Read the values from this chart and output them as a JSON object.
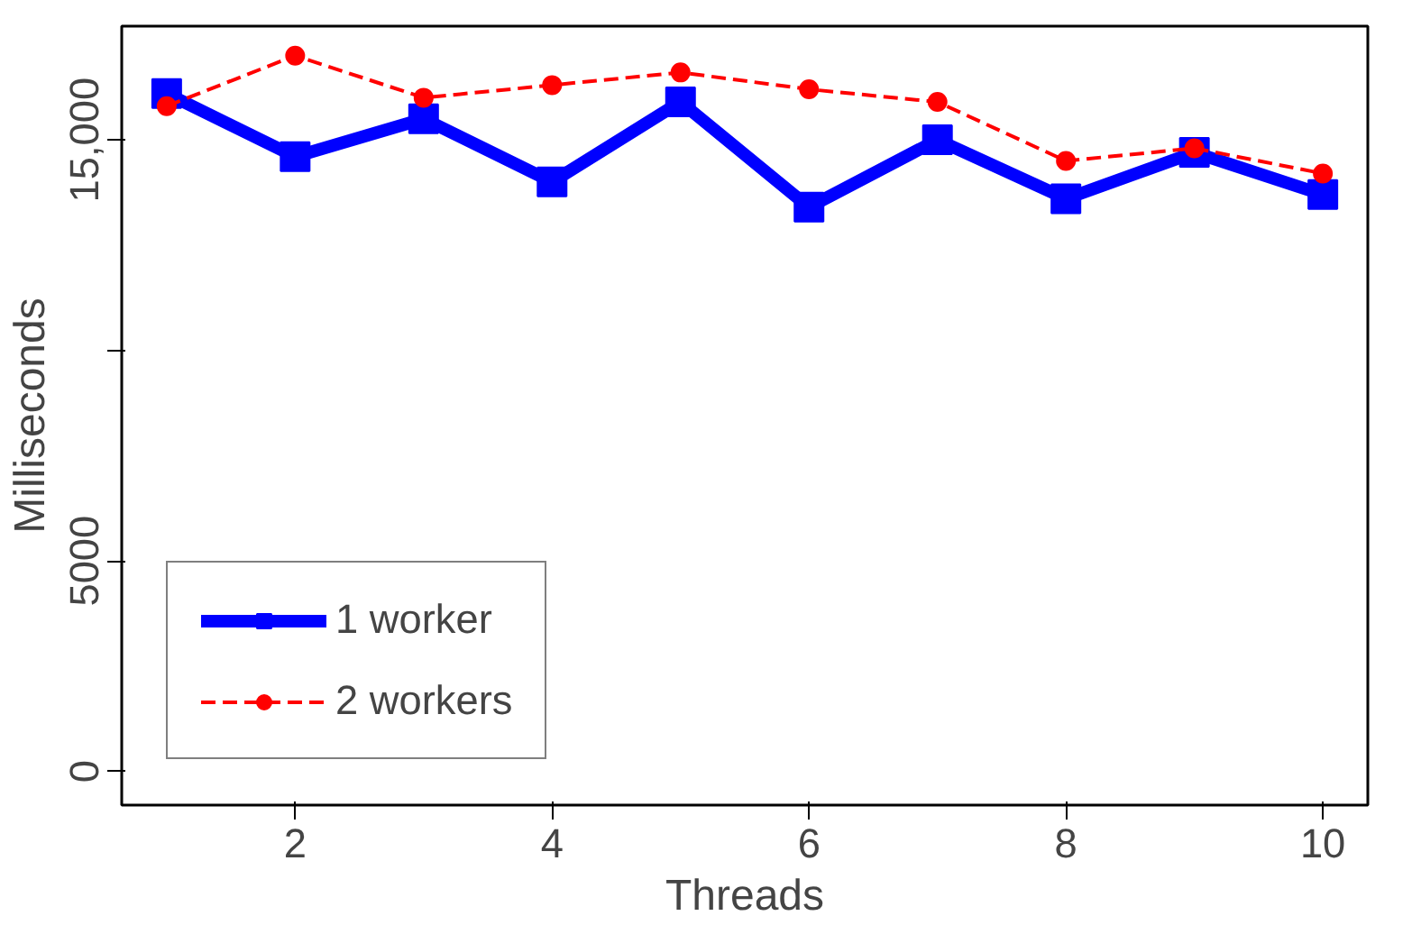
{
  "chart_data": {
    "type": "line",
    "xlabel": "Threads",
    "ylabel": "Milliseconds",
    "x": [
      1,
      2,
      3,
      4,
      5,
      6,
      7,
      8,
      9,
      10
    ],
    "series": [
      {
        "name": "1 worker",
        "color": "#0000ff",
        "marker": "square",
        "line_style": "solid",
        "values": [
          16100,
          14600,
          15500,
          14000,
          15900,
          13400,
          15000,
          13600,
          14700,
          13700
        ]
      },
      {
        "name": "2 workers",
        "color": "#ff0000",
        "marker": "circle",
        "line_style": "dashed",
        "values": [
          15800,
          17000,
          16000,
          16300,
          16600,
          16200,
          15900,
          14500,
          14800,
          14200
        ]
      }
    ],
    "xlim": [
      0.65,
      10.35
    ],
    "ylim": [
      -800,
      17700
    ],
    "xticks": [
      2,
      4,
      6,
      8,
      10
    ],
    "yticks": [
      0,
      5000,
      {
        "value": 10000,
        "label": null
      },
      {
        "value": 15000,
        "label": "15,000"
      }
    ],
    "grid": false,
    "legend": "bottom left"
  }
}
